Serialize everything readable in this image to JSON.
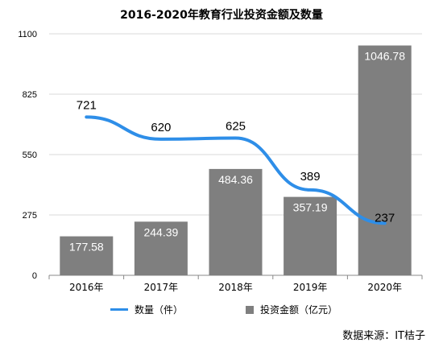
{
  "chart_data": {
    "type": "bar",
    "title": "2016-2020年教育行业投资金额及数量",
    "categories": [
      "2016年",
      "2017年",
      "2018年",
      "2019年",
      "2020年"
    ],
    "ylim": [
      0,
      1100
    ],
    "yticks": [
      "0",
      "275",
      "550",
      "825",
      "1100"
    ],
    "grid": true,
    "legend_placement": "bottom",
    "series": [
      {
        "name": "投资金额（亿元）",
        "type": "bar",
        "values": [
          177.58,
          244.39,
          484.36,
          357.19,
          1046.78
        ],
        "labels": [
          "177.58",
          "244.39",
          "484.36",
          "357.19",
          "1046.78"
        ],
        "color": "#7f7f7f"
      },
      {
        "name": "数量（件）",
        "type": "line",
        "values": [
          721,
          620,
          625,
          389,
          237
        ],
        "labels": [
          "721",
          "620",
          "625",
          "389",
          "237"
        ],
        "color": "#2e8ee8"
      }
    ]
  },
  "legend": {
    "line_label": "数量（件）",
    "bar_label": "投资金额（亿元）"
  },
  "source": "数据来源：IT桔子"
}
